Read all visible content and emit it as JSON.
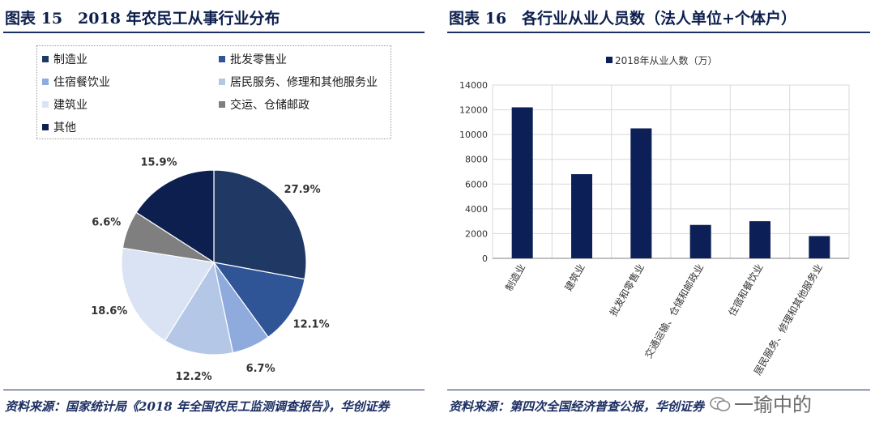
{
  "left": {
    "title": "图表 15　2018 年农民工从事行业分布",
    "source": "资料来源：国家统计局《2018 年全国农民工监测调查报告》，华创证券"
  },
  "right": {
    "title": "图表 16　各行业从业人员数（法人单位+个体户）",
    "source": "资料来源：第四次全国经济普查公报，华创证券"
  },
  "watermark": "一瑜中的",
  "chart_data": [
    {
      "type": "pie",
      "title": "",
      "legend": "top",
      "slices": [
        {
          "name": "制造业",
          "value": 27.9,
          "label": "27.9%",
          "color": "#1f3864"
        },
        {
          "name": "批发零售业",
          "value": 12.1,
          "label": "12.1%",
          "color": "#2f5597"
        },
        {
          "name": "住宿餐饮业",
          "value": 6.7,
          "label": "6.7%",
          "color": "#8faadc"
        },
        {
          "name": "居民服务、修理和其他服务业",
          "value": 12.2,
          "label": "12.2%",
          "color": "#b4c7e7"
        },
        {
          "name": "建筑业",
          "value": 18.6,
          "label": "18.6%",
          "color": "#dae3f3"
        },
        {
          "name": "交运、仓储邮政",
          "value": 6.6,
          "label": "6.6%",
          "color": "#7f7f7f"
        },
        {
          "name": "其他",
          "value": 15.9,
          "label": "15.9%",
          "color": "#0c1f4f"
        }
      ]
    },
    {
      "type": "bar",
      "title": "",
      "legend": "top",
      "categories": [
        "制造业",
        "建筑业",
        "批发和零售业",
        "交通运输、仓储和邮政业",
        "住宿和餐饮业",
        "居民服务、修理和其他服务业"
      ],
      "series": [
        {
          "name": "2018年从业人数（万）",
          "values": [
            12200,
            6800,
            10500,
            2700,
            3000,
            1800
          ],
          "color": "#0c1f56"
        }
      ],
      "yticks": [
        "0",
        "2000",
        "4000",
        "6000",
        "8000",
        "10000",
        "12000",
        "14000"
      ],
      "ylim": [
        0,
        14000
      ],
      "grid": true
    }
  ]
}
